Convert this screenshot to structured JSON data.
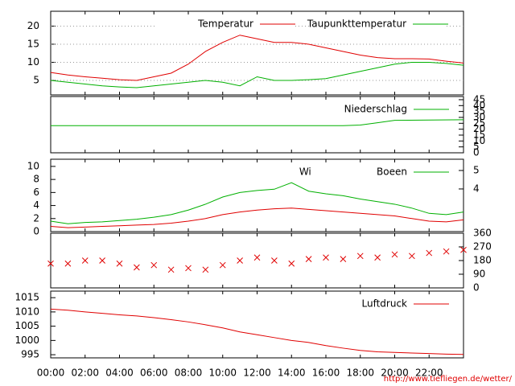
{
  "time_axis": {
    "xlim": [
      0,
      24
    ],
    "xticks": [
      {
        "value": 0,
        "label": "00:00"
      },
      {
        "value": 2,
        "label": "02:00"
      },
      {
        "value": 4,
        "label": "04:00"
      },
      {
        "value": 6,
        "label": "06:00"
      },
      {
        "value": 8,
        "label": "08:00"
      },
      {
        "value": 10,
        "label": "10:00"
      },
      {
        "value": 12,
        "label": "12:00"
      },
      {
        "value": 14,
        "label": "14:00"
      },
      {
        "value": 16,
        "label": "16:00"
      },
      {
        "value": 18,
        "label": "18:00"
      },
      {
        "value": 20,
        "label": "20:00"
      },
      {
        "value": 22,
        "label": "22:00"
      }
    ]
  },
  "chart_data": [
    {
      "type": "line",
      "ylim": [
        1.0,
        24.1
      ],
      "yticks": [
        5,
        10,
        15,
        20
      ],
      "yaxis": "left",
      "grid": true,
      "x": [
        0,
        1,
        2,
        3,
        4,
        5,
        6,
        7,
        8,
        9,
        10,
        11,
        12,
        13,
        14,
        15,
        16,
        17,
        18,
        19,
        20,
        21,
        22,
        23,
        24
      ],
      "series": [
        {
          "name": "Temperatur",
          "color": "#e00000",
          "values": [
            7.2,
            6.5,
            6.0,
            5.6,
            5.2,
            5.0,
            6.0,
            7.0,
            9.5,
            13,
            15.5,
            17.5,
            16.5,
            15.5,
            15.5,
            15.0,
            14.0,
            13.0,
            12.0,
            11.3,
            11.0,
            11.0,
            10.9,
            10.3,
            9.8
          ]
        },
        {
          "name": "Taupunkttemperatur",
          "color": "#00b000",
          "values": [
            5,
            4.5,
            4,
            3.5,
            3.2,
            3,
            3.5,
            4,
            4.5,
            5,
            4.5,
            3.5,
            6,
            5,
            5,
            5.2,
            5.5,
            6.5,
            7.5,
            8.5,
            9.5,
            10,
            10,
            9.7,
            9.2
          ]
        }
      ]
    },
    {
      "type": "line",
      "ylim": [
        0,
        47.7
      ],
      "yticks": [
        0,
        5,
        10,
        15,
        20,
        25,
        30,
        35,
        40,
        45
      ],
      "yaxis": "right",
      "grid": false,
      "x": [
        0,
        16,
        17,
        18,
        19,
        20,
        24
      ],
      "series": [
        {
          "name": "Niederschlag",
          "color": "#00b000",
          "values": [
            23,
            23,
            23,
            23.5,
            25.5,
            27.5,
            28
          ]
        }
      ]
    },
    {
      "type": "line",
      "ylim": [
        0,
        11.1
      ],
      "yticks": [
        0,
        2,
        4,
        6,
        8,
        10
      ],
      "yaxis": "left",
      "grid": false,
      "y2lim": [
        1.69,
        5.61
      ],
      "y2ticks": [
        4,
        5
      ],
      "x": [
        0,
        1,
        2,
        3,
        4,
        5,
        6,
        7,
        8,
        9,
        10,
        11,
        12,
        13,
        14,
        15,
        16,
        17,
        18,
        19,
        20,
        21,
        22,
        23,
        24
      ],
      "series": [
        {
          "name": "Wind",
          "color": "#e00000",
          "values": [
            0.8,
            0.6,
            0.7,
            0.8,
            0.9,
            1.0,
            1.1,
            1.3,
            1.6,
            2.0,
            2.6,
            3.0,
            3.3,
            3.5,
            3.6,
            3.4,
            3.2,
            3.0,
            2.8,
            2.6,
            2.4,
            2.0,
            1.6,
            1.5,
            1.8
          ]
        },
        {
          "name": "Boeen",
          "color": "#00b000",
          "values": [
            1.6,
            1.2,
            1.4,
            1.5,
            1.7,
            1.9,
            2.2,
            2.6,
            3.3,
            4.2,
            5.3,
            6.0,
            6.3,
            6.5,
            7.5,
            6.2,
            5.8,
            5.5,
            5.0,
            4.6,
            4.2,
            3.6,
            2.8,
            2.6,
            3.0
          ]
        }
      ]
    },
    {
      "type": "scatter",
      "ylim": [
        0,
        360
      ],
      "yticks": [
        0,
        90,
        180,
        270,
        360
      ],
      "yaxis": "right",
      "grid": false,
      "x": [
        0,
        1,
        2,
        3,
        4,
        5,
        6,
        7,
        8,
        9,
        10,
        11,
        12,
        13,
        14,
        15,
        16,
        17,
        18,
        19,
        20,
        21,
        22,
        23,
        24
      ],
      "series": [
        {
          "color": "#e00000",
          "values": [
            160,
            160,
            180,
            180,
            160,
            135,
            150,
            120,
            130,
            120,
            150,
            180,
            200,
            180,
            160,
            190,
            200,
            190,
            210,
            200,
            220,
            210,
            230,
            240,
            250
          ]
        }
      ]
    },
    {
      "type": "line",
      "ylim": [
        993.9,
        1017.3
      ],
      "yticks": [
        995,
        1000,
        1005,
        1010,
        1015
      ],
      "yaxis": "left",
      "grid": false,
      "x": [
        0,
        1,
        2,
        3,
        4,
        5,
        6,
        7,
        8,
        9,
        10,
        11,
        12,
        13,
        14,
        15,
        16,
        17,
        18,
        19,
        20,
        21,
        22,
        23,
        24
      ],
      "series": [
        {
          "name": "Luftdruck",
          "color": "#e00000",
          "values": [
            1011,
            1010.6,
            1010,
            1009.5,
            1009,
            1008.6,
            1008,
            1007.3,
            1006.5,
            1005.5,
            1004.4,
            1003,
            1002,
            1001,
            1000,
            999.3,
            998.2,
            997.3,
            996.5,
            996,
            995.8,
            995.6,
            995.4,
            995.2,
            995.1
          ]
        }
      ]
    }
  ],
  "footer": "http://www.tiefliegen.de/wetter/"
}
